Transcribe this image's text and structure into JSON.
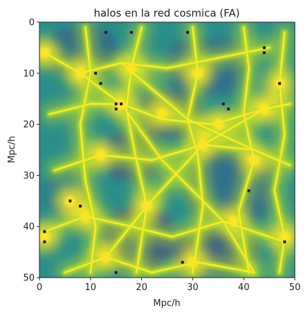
{
  "chart_data": {
    "type": "heatmap",
    "title": "halos en la red cosmica (FA)",
    "xlabel": "Mpc/h",
    "ylabel": "Mpc/h",
    "xlim": [
      0,
      50
    ],
    "ylim": [
      50,
      0
    ],
    "xticks": [
      "0",
      "10",
      "20",
      "30",
      "40",
      "50"
    ],
    "yticks": [
      "0",
      "10",
      "20",
      "30",
      "40",
      "50"
    ],
    "colormap": "viridis",
    "colorbar": false,
    "grid": false,
    "filaments": [
      [
        [
          1,
          6
        ],
        [
          8,
          10
        ],
        [
          16,
          8
        ],
        [
          25,
          9
        ],
        [
          35,
          7
        ],
        [
          45,
          5
        ]
      ],
      [
        [
          2,
          18
        ],
        [
          10,
          16
        ],
        [
          16,
          16
        ],
        [
          24,
          19
        ],
        [
          34,
          20
        ],
        [
          44,
          17
        ],
        [
          49,
          16
        ]
      ],
      [
        [
          3,
          29
        ],
        [
          12,
          26
        ],
        [
          22,
          27
        ],
        [
          32,
          24
        ],
        [
          42,
          25
        ],
        [
          49,
          28
        ]
      ],
      [
        [
          1,
          41
        ],
        [
          9,
          38
        ],
        [
          18,
          40
        ],
        [
          26,
          42
        ],
        [
          36,
          39
        ],
        [
          48,
          43
        ]
      ],
      [
        [
          5,
          49
        ],
        [
          13,
          46
        ],
        [
          22,
          49
        ],
        [
          31,
          47
        ],
        [
          42,
          49
        ]
      ],
      [
        [
          9,
          1
        ],
        [
          10,
          10
        ],
        [
          8,
          20
        ],
        [
          9,
          31
        ],
        [
          11,
          40
        ],
        [
          10,
          49
        ]
      ],
      [
        [
          20,
          1
        ],
        [
          18,
          9
        ],
        [
          17,
          17
        ],
        [
          19,
          27
        ],
        [
          21,
          36
        ],
        [
          19,
          49
        ]
      ],
      [
        [
          30,
          1
        ],
        [
          31,
          10
        ],
        [
          29,
          19
        ],
        [
          31,
          26
        ],
        [
          32,
          36
        ],
        [
          30,
          49
        ]
      ],
      [
        [
          40,
          1
        ],
        [
          41,
          9
        ],
        [
          40,
          18
        ],
        [
          42,
          27
        ],
        [
          39,
          37
        ],
        [
          41,
          49
        ]
      ],
      [
        [
          48,
          2
        ],
        [
          47,
          12
        ],
        [
          48,
          22
        ],
        [
          46,
          33
        ],
        [
          48,
          42
        ],
        [
          47,
          49
        ]
      ],
      [
        [
          8,
          10
        ],
        [
          16,
          16
        ],
        [
          24,
          27
        ],
        [
          36,
          39
        ],
        [
          42,
          49
        ]
      ],
      [
        [
          44,
          17
        ],
        [
          32,
          24
        ],
        [
          21,
          36
        ],
        [
          13,
          46
        ]
      ],
      [
        [
          16,
          8
        ],
        [
          29,
          19
        ],
        [
          42,
          25
        ]
      ]
    ],
    "knots": [
      [
        1,
        6
      ],
      [
        8,
        10
      ],
      [
        16,
        16
      ],
      [
        18,
        9
      ],
      [
        31,
        10
      ],
      [
        44,
        17
      ],
      [
        47,
        12
      ],
      [
        35,
        20
      ],
      [
        1,
        42
      ],
      [
        9,
        38
      ],
      [
        12,
        26
      ],
      [
        32,
        24
      ],
      [
        42,
        27
      ],
      [
        21,
        36
      ],
      [
        30,
        47
      ],
      [
        13,
        46
      ],
      [
        48,
        42
      ],
      [
        6,
        35
      ],
      [
        38,
        39
      ],
      [
        24,
        18
      ]
    ],
    "halos": [
      [
        15,
        16
      ],
      [
        16,
        16
      ],
      [
        15,
        17
      ],
      [
        11,
        10
      ],
      [
        12,
        12
      ],
      [
        13,
        2
      ],
      [
        18,
        2
      ],
      [
        29,
        2
      ],
      [
        44,
        5
      ],
      [
        44,
        6
      ],
      [
        36,
        16
      ],
      [
        37,
        17
      ],
      [
        47,
        12
      ],
      [
        1,
        41
      ],
      [
        1,
        43
      ],
      [
        6,
        35
      ],
      [
        8,
        36
      ],
      [
        41,
        33
      ],
      [
        28,
        47
      ],
      [
        15,
        49
      ],
      [
        48,
        43
      ]
    ]
  }
}
